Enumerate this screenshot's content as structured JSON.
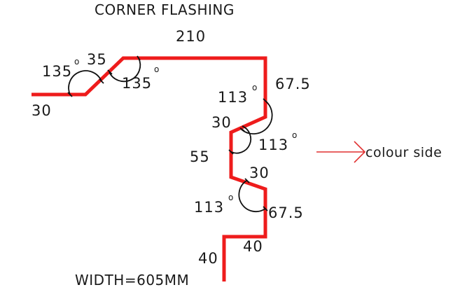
{
  "title": "CORNER FLASHING",
  "width_note": "WIDTH=605MM",
  "colour_side_label": "colour side",
  "colors": {
    "flashing": "#ee1c1c",
    "arrow": "#e03030",
    "text": "#1a1a1a",
    "background": "#ffffff"
  },
  "segments": {
    "s30_left": "30",
    "s35_slope": "35",
    "s210_top": "210",
    "s67_5_upper": "67.5",
    "s30_upper_jog": "30",
    "s55_vertical": "55",
    "s30_lower_jog": "30",
    "s67_5_lower": "67.5",
    "s40_horizontal": "40",
    "s40_vertical": "40"
  },
  "angles": {
    "a135_left": "135",
    "a135_top": "135",
    "a113_upper": "113",
    "a113_middle": "113",
    "a113_lower": "113",
    "degree_mark": "o"
  }
}
